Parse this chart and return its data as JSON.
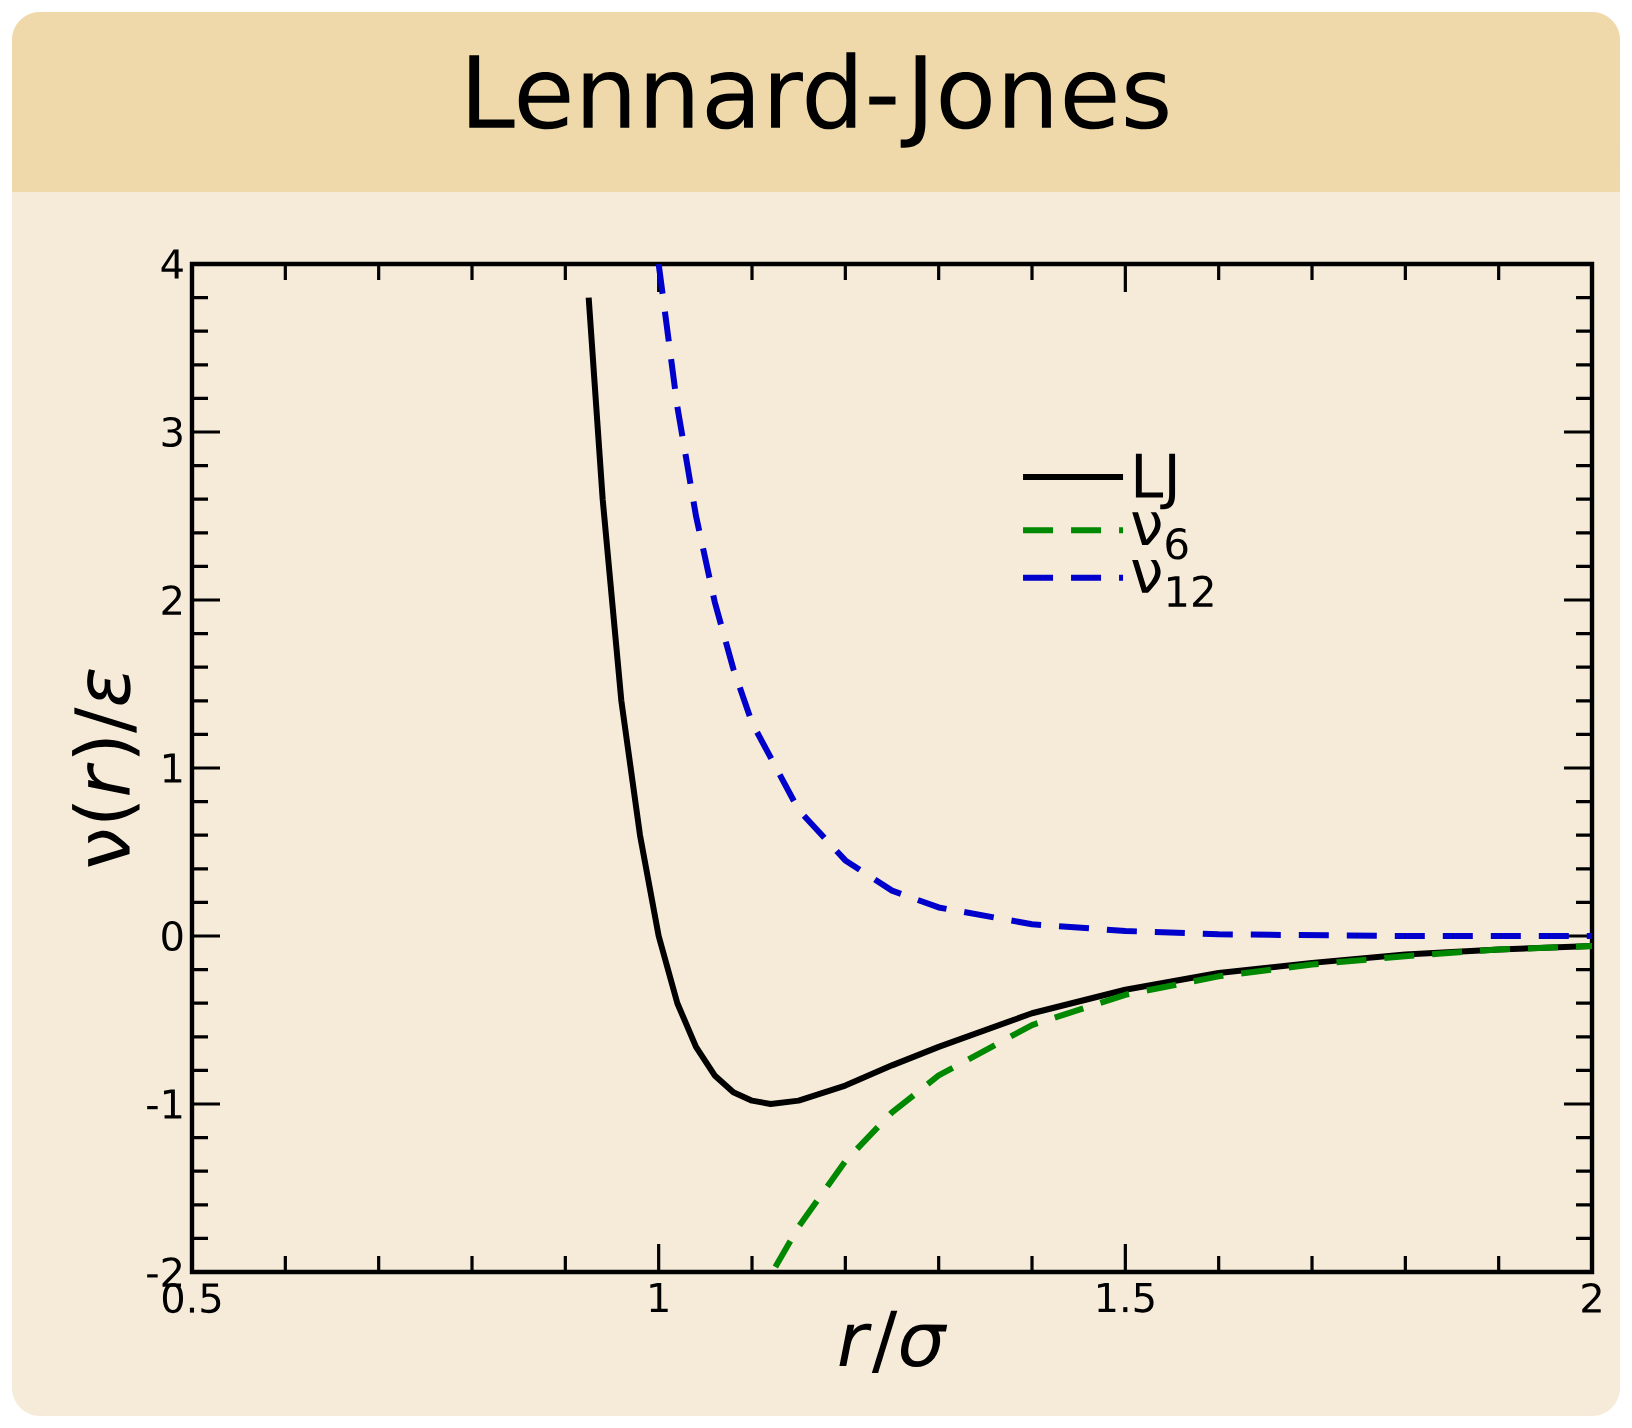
{
  "chart_data": {
    "type": "line",
    "title": "Lennard-Jones",
    "xlabel": "*r*/*σ*",
    "ylabel": "ν(*r*)/*ε*",
    "xlim": [
      0.5,
      2
    ],
    "ylim": [
      -2,
      4
    ],
    "xticks": [
      0.5,
      1,
      1.5,
      2
    ],
    "yticks": [
      -2,
      -1,
      0,
      1,
      2,
      3,
      4
    ],
    "legend": "top right",
    "grid": false,
    "marker": "none",
    "series": [
      {
        "name": "LJ",
        "color": "#000000",
        "line_style": "solid",
        "x": [
          0.925,
          0.94,
          0.96,
          0.98,
          1.0,
          1.02,
          1.04,
          1.06,
          1.08,
          1.1,
          1.12,
          1.15,
          1.2,
          1.25,
          1.3,
          1.4,
          1.5,
          1.6,
          1.7,
          1.8,
          1.9,
          2.0
        ],
        "values": [
          3.8,
          2.6,
          1.4,
          0.6,
          0,
          -0.4,
          -0.66,
          -0.83,
          -0.93,
          -0.98,
          -1.0,
          -0.98,
          -0.89,
          -0.77,
          -0.66,
          -0.46,
          -0.32,
          -0.22,
          -0.16,
          -0.11,
          -0.08,
          -0.06
        ]
      },
      {
        "name": "ν$_{6}$",
        "color": "#008800",
        "line_style": "dashed",
        "x": [
          1.125,
          1.15,
          1.2,
          1.25,
          1.3,
          1.4,
          1.5,
          1.6,
          1.7,
          1.8,
          1.9,
          2.0
        ],
        "values": [
          -1.97,
          -1.73,
          -1.34,
          -1.05,
          -0.83,
          -0.53,
          -0.35,
          -0.24,
          -0.17,
          -0.12,
          -0.08,
          -0.06
        ]
      },
      {
        "name": "ν$_{12}$",
        "color": "#0000cc",
        "line_style": "dashed",
        "x": [
          1.0,
          1.02,
          1.04,
          1.06,
          1.08,
          1.1,
          1.15,
          1.2,
          1.25,
          1.3,
          1.4,
          1.5,
          1.6,
          1.8,
          2.0
        ],
        "values": [
          4.0,
          3.15,
          2.5,
          1.99,
          1.59,
          1.27,
          0.75,
          0.45,
          0.27,
          0.17,
          0.07,
          0.03,
          0.01,
          0,
          0
        ]
      }
    ]
  }
}
